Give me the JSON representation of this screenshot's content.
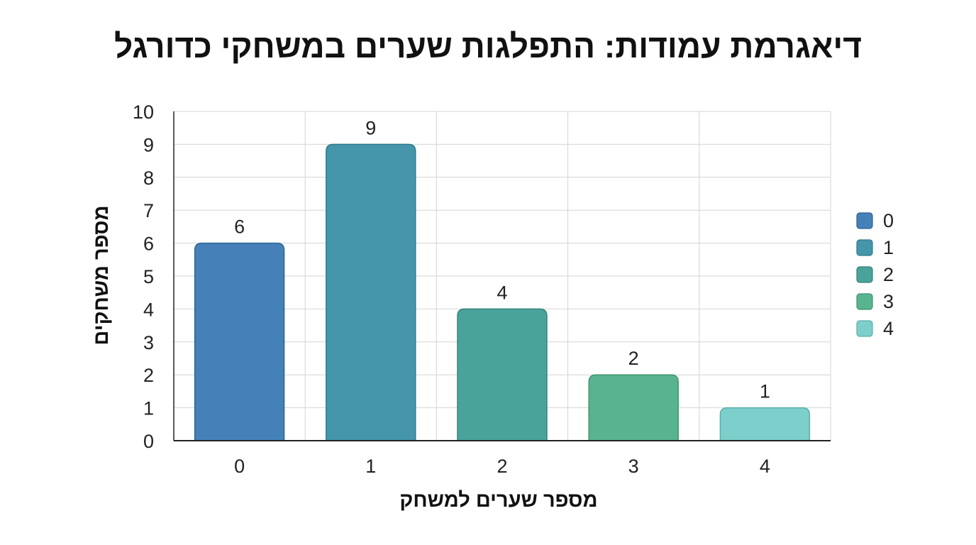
{
  "chart_data": {
    "type": "bar",
    "title": "דיאגרמת עמודות: התפלגות שערים במשחקי כדורגל",
    "xlabel": "מספר שערים למשחק",
    "ylabel": "מספר משחקים",
    "categories": [
      "0",
      "1",
      "2",
      "3",
      "4"
    ],
    "values": [
      6,
      9,
      4,
      2,
      1
    ],
    "data_labels": [
      "6",
      "9",
      "4",
      "2",
      "1"
    ],
    "ylim": [
      0,
      10
    ],
    "yticks": [
      "0",
      "1",
      "2",
      "3",
      "4",
      "5",
      "6",
      "7",
      "8",
      "9",
      "10"
    ],
    "grid": true,
    "legend": {
      "position": "right",
      "entries": [
        "0",
        "1",
        "2",
        "3",
        "4"
      ]
    },
    "colors": [
      "#4581b8",
      "#4596aa",
      "#4aa39b",
      "#58b48f",
      "#7ccfcb"
    ],
    "edge_colors": [
      "#2f6592",
      "#2f7a8c",
      "#33857c",
      "#3f9470",
      "#5aaeaa"
    ]
  }
}
